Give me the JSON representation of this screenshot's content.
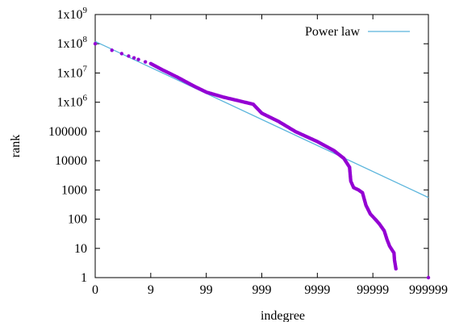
{
  "chart_data": {
    "type": "scatter",
    "xlabel": "indegree",
    "ylabel": "rank",
    "xscale": "log (offset by 1)",
    "yscale": "log",
    "xlim": [
      0,
      999999
    ],
    "ylim": [
      1,
      1000000000
    ],
    "x_ticks": [
      {
        "value": 0,
        "label": "0"
      },
      {
        "value": 9,
        "label": "9"
      },
      {
        "value": 99,
        "label": "99"
      },
      {
        "value": 999,
        "label": "999"
      },
      {
        "value": 9999,
        "label": "9999"
      },
      {
        "value": 99999,
        "label": "99999"
      },
      {
        "value": 999999,
        "label": "999999"
      }
    ],
    "y_ticks": [
      {
        "value": 1,
        "label": "1"
      },
      {
        "value": 10,
        "label": "10"
      },
      {
        "value": 100,
        "label": "100"
      },
      {
        "value": 1000,
        "label": "1000"
      },
      {
        "value": 10000,
        "label": "10000"
      },
      {
        "value": 100000,
        "label": "100000"
      },
      {
        "value": 1000000,
        "label": "1x10",
        "sup": "6"
      },
      {
        "value": 10000000,
        "label": "1x10",
        "sup": "7"
      },
      {
        "value": 100000000,
        "label": "1x10",
        "sup": "8"
      },
      {
        "value": 1000000000,
        "label": "1x10",
        "sup": "9"
      }
    ],
    "legend": {
      "position": "top-right",
      "entries": [
        {
          "label": "Power law",
          "color": "#5bb5dc"
        }
      ]
    },
    "colors": {
      "points": "#9400d3",
      "fit": "#5bb5dc"
    },
    "series": [
      {
        "kind": "points",
        "points": [
          {
            "x": 0,
            "y": 100000000
          },
          {
            "x": 1,
            "y": 60000000
          },
          {
            "x": 2,
            "y": 46000000
          },
          {
            "x": 3,
            "y": 38000000
          },
          {
            "x": 4,
            "y": 33000000
          },
          {
            "x": 5,
            "y": 29000000
          },
          {
            "x": 7,
            "y": 24000000
          },
          {
            "x": 9,
            "y": 21000000
          },
          {
            "x": 15,
            "y": 13000000
          },
          {
            "x": 30,
            "y": 7000000
          },
          {
            "x": 60,
            "y": 3500000
          },
          {
            "x": 100,
            "y": 2200000
          },
          {
            "x": 200,
            "y": 1500000
          },
          {
            "x": 400,
            "y": 1100000
          },
          {
            "x": 700,
            "y": 850000
          },
          {
            "x": 1000,
            "y": 420000
          },
          {
            "x": 2000,
            "y": 220000
          },
          {
            "x": 4000,
            "y": 100000
          },
          {
            "x": 10000,
            "y": 45000
          },
          {
            "x": 20000,
            "y": 22000
          },
          {
            "x": 30000,
            "y": 12000
          },
          {
            "x": 38000,
            "y": 6000
          },
          {
            "x": 40000,
            "y": 2000
          },
          {
            "x": 45000,
            "y": 1200
          },
          {
            "x": 55000,
            "y": 1000
          },
          {
            "x": 65000,
            "y": 800
          },
          {
            "x": 75000,
            "y": 300
          },
          {
            "x": 90000,
            "y": 150
          },
          {
            "x": 110000,
            "y": 100
          },
          {
            "x": 130000,
            "y": 70
          },
          {
            "x": 160000,
            "y": 40
          },
          {
            "x": 180000,
            "y": 20
          },
          {
            "x": 200000,
            "y": 12
          },
          {
            "x": 220000,
            "y": 9
          },
          {
            "x": 240000,
            "y": 7
          },
          {
            "x": 245000,
            "y": 4
          },
          {
            "x": 260000,
            "y": 2
          },
          {
            "x": 999999,
            "y": 1
          }
        ]
      },
      {
        "kind": "line",
        "name": "Power law",
        "points": [
          {
            "x": 0,
            "y": 120000000
          },
          {
            "x": 999999,
            "y": 550
          }
        ]
      }
    ]
  }
}
